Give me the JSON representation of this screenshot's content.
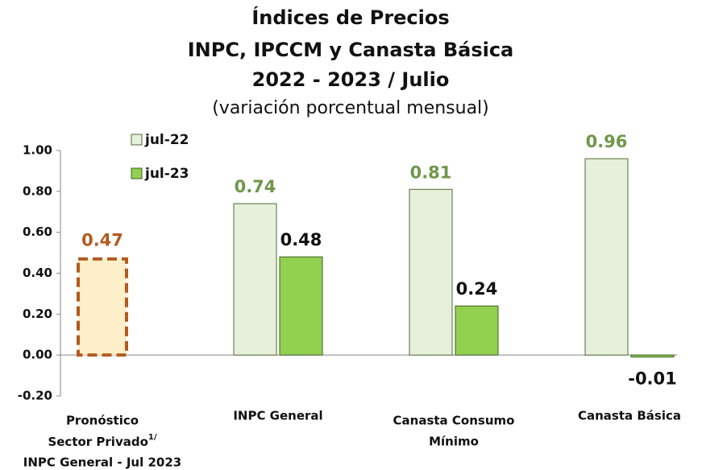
{
  "chart_data": {
    "type": "bar",
    "title": [
      "Índices de Precios",
      "INPC, IPCCM y Canasta Básica",
      "2022 - 2023 / Julio"
    ],
    "subtitle": "(variación porcentual mensual)",
    "categories": [
      [
        "Pronóstico",
        "Sector Privado",
        "INPC General - Jul 2023"
      ],
      [
        "INPC General"
      ],
      [
        "Canasta Consumo",
        "Mínimo"
      ],
      [
        "Canasta Básica"
      ]
    ],
    "footnote_mark": "1/",
    "series": [
      {
        "name": "jul-22",
        "color": "#e6f0da",
        "stroke": "#4f6b35",
        "label_color": "#70974a",
        "values": [
          null,
          0.74,
          0.81,
          0.96
        ]
      },
      {
        "name": "jul-23",
        "color": "#92d050",
        "stroke": "#3f5f25",
        "label_color": "#111111",
        "values": [
          null,
          0.48,
          0.24,
          -0.01
        ]
      }
    ],
    "forecast": {
      "value": 0.47,
      "color": "#fdefc9",
      "stroke": "#b35a1f"
    },
    "ylim": [
      -0.2,
      1.0
    ],
    "yticks": [
      {
        "value": -0.2,
        "label": "-0.20"
      },
      {
        "value": 0,
        "label": "0.00"
      },
      {
        "value": 0.2,
        "label": "0.20"
      },
      {
        "value": 0.4,
        "label": "0.40"
      },
      {
        "value": 0.6,
        "label": "0.60"
      },
      {
        "value": 0.8,
        "label": "0.80"
      },
      {
        "value": 1.0,
        "label": "1.00"
      }
    ],
    "legend": "top-left"
  }
}
